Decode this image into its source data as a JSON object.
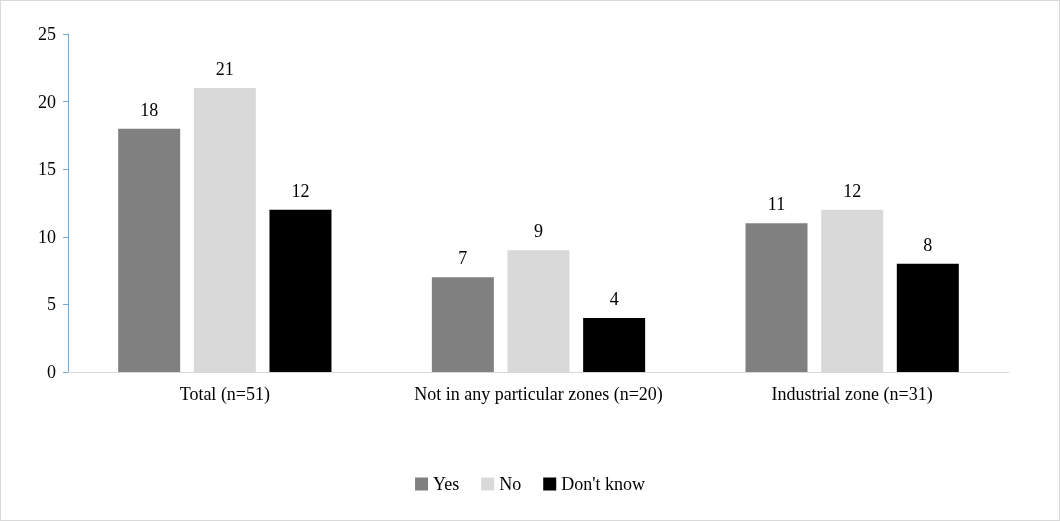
{
  "chart_data": {
    "type": "bar",
    "categories": [
      "Total (n=51)",
      "Not in any particular zones (n=20)",
      "Industrial zone (n=31)"
    ],
    "series": [
      {
        "name": "Yes",
        "color": "#808080",
        "values": [
          18,
          7,
          11
        ]
      },
      {
        "name": "No",
        "color": "#d9d9d9",
        "values": [
          21,
          9,
          12
        ]
      },
      {
        "name": "Don't know",
        "color": "#000000",
        "values": [
          12,
          4,
          8
        ]
      }
    ],
    "ylim": [
      0,
      25
    ],
    "yticks": [
      0,
      5,
      10,
      15,
      20,
      25
    ],
    "grid": false,
    "legend": "bottom",
    "data_labels": true
  }
}
